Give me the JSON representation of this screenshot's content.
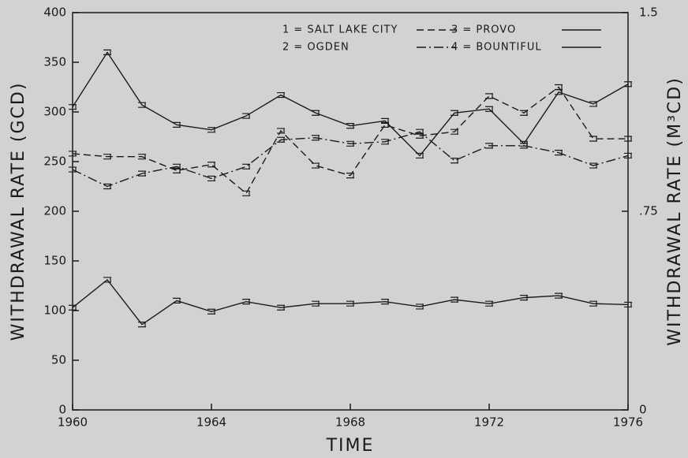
{
  "chart_data": {
    "type": "line",
    "xlabel": "TIME",
    "ylabel": "WITHDRAWAL RATE (GCD)",
    "y2label": "WITHDRAWAL RATE (M³CD)",
    "x": [
      1960,
      1961,
      1962,
      1963,
      1964,
      1965,
      1966,
      1967,
      1968,
      1969,
      1970,
      1971,
      1972,
      1973,
      1974,
      1975,
      1976
    ],
    "xlim": [
      1960,
      1976
    ],
    "xticks": [
      1960,
      1964,
      1968,
      1972,
      1976
    ],
    "ylim": [
      0,
      400
    ],
    "yticks": [
      0,
      50,
      100,
      150,
      200,
      250,
      300,
      350,
      400
    ],
    "y2lim": [
      0,
      1.5
    ],
    "y2ticks": [
      0,
      {
        "value": 0.75,
        "label": ".75"
      },
      1.5
    ],
    "series": [
      {
        "name": "1 = SALT LAKE CITY",
        "dash": "dashed",
        "color": "#1a1a1a",
        "values": [
          258,
          255,
          255,
          241,
          247,
          218,
          281,
          246,
          236,
          287,
          276,
          280,
          316,
          299,
          325,
          273,
          273
        ]
      },
      {
        "name": "2 = OGDEN",
        "dash": "dashdot",
        "color": "#1a1a1a",
        "values": [
          242,
          225,
          238,
          245,
          233,
          245,
          272,
          274,
          268,
          270,
          280,
          251,
          266,
          266,
          259,
          246,
          256
        ]
      },
      {
        "name": "3 = PROVO",
        "dash": "solid",
        "color": "#1a1a1a",
        "values": [
          103,
          131,
          86,
          110,
          99,
          109,
          103,
          107,
          107,
          109,
          104,
          111,
          107,
          113,
          115,
          107,
          106
        ]
      },
      {
        "name": "4 = BOUNTIFUL",
        "dash": "solid",
        "color": "#1a1a1a",
        "values": [
          305,
          360,
          307,
          287,
          282,
          296,
          317,
          299,
          286,
          291,
          256,
          299,
          303,
          268,
          320,
          308,
          328
        ]
      }
    ]
  }
}
